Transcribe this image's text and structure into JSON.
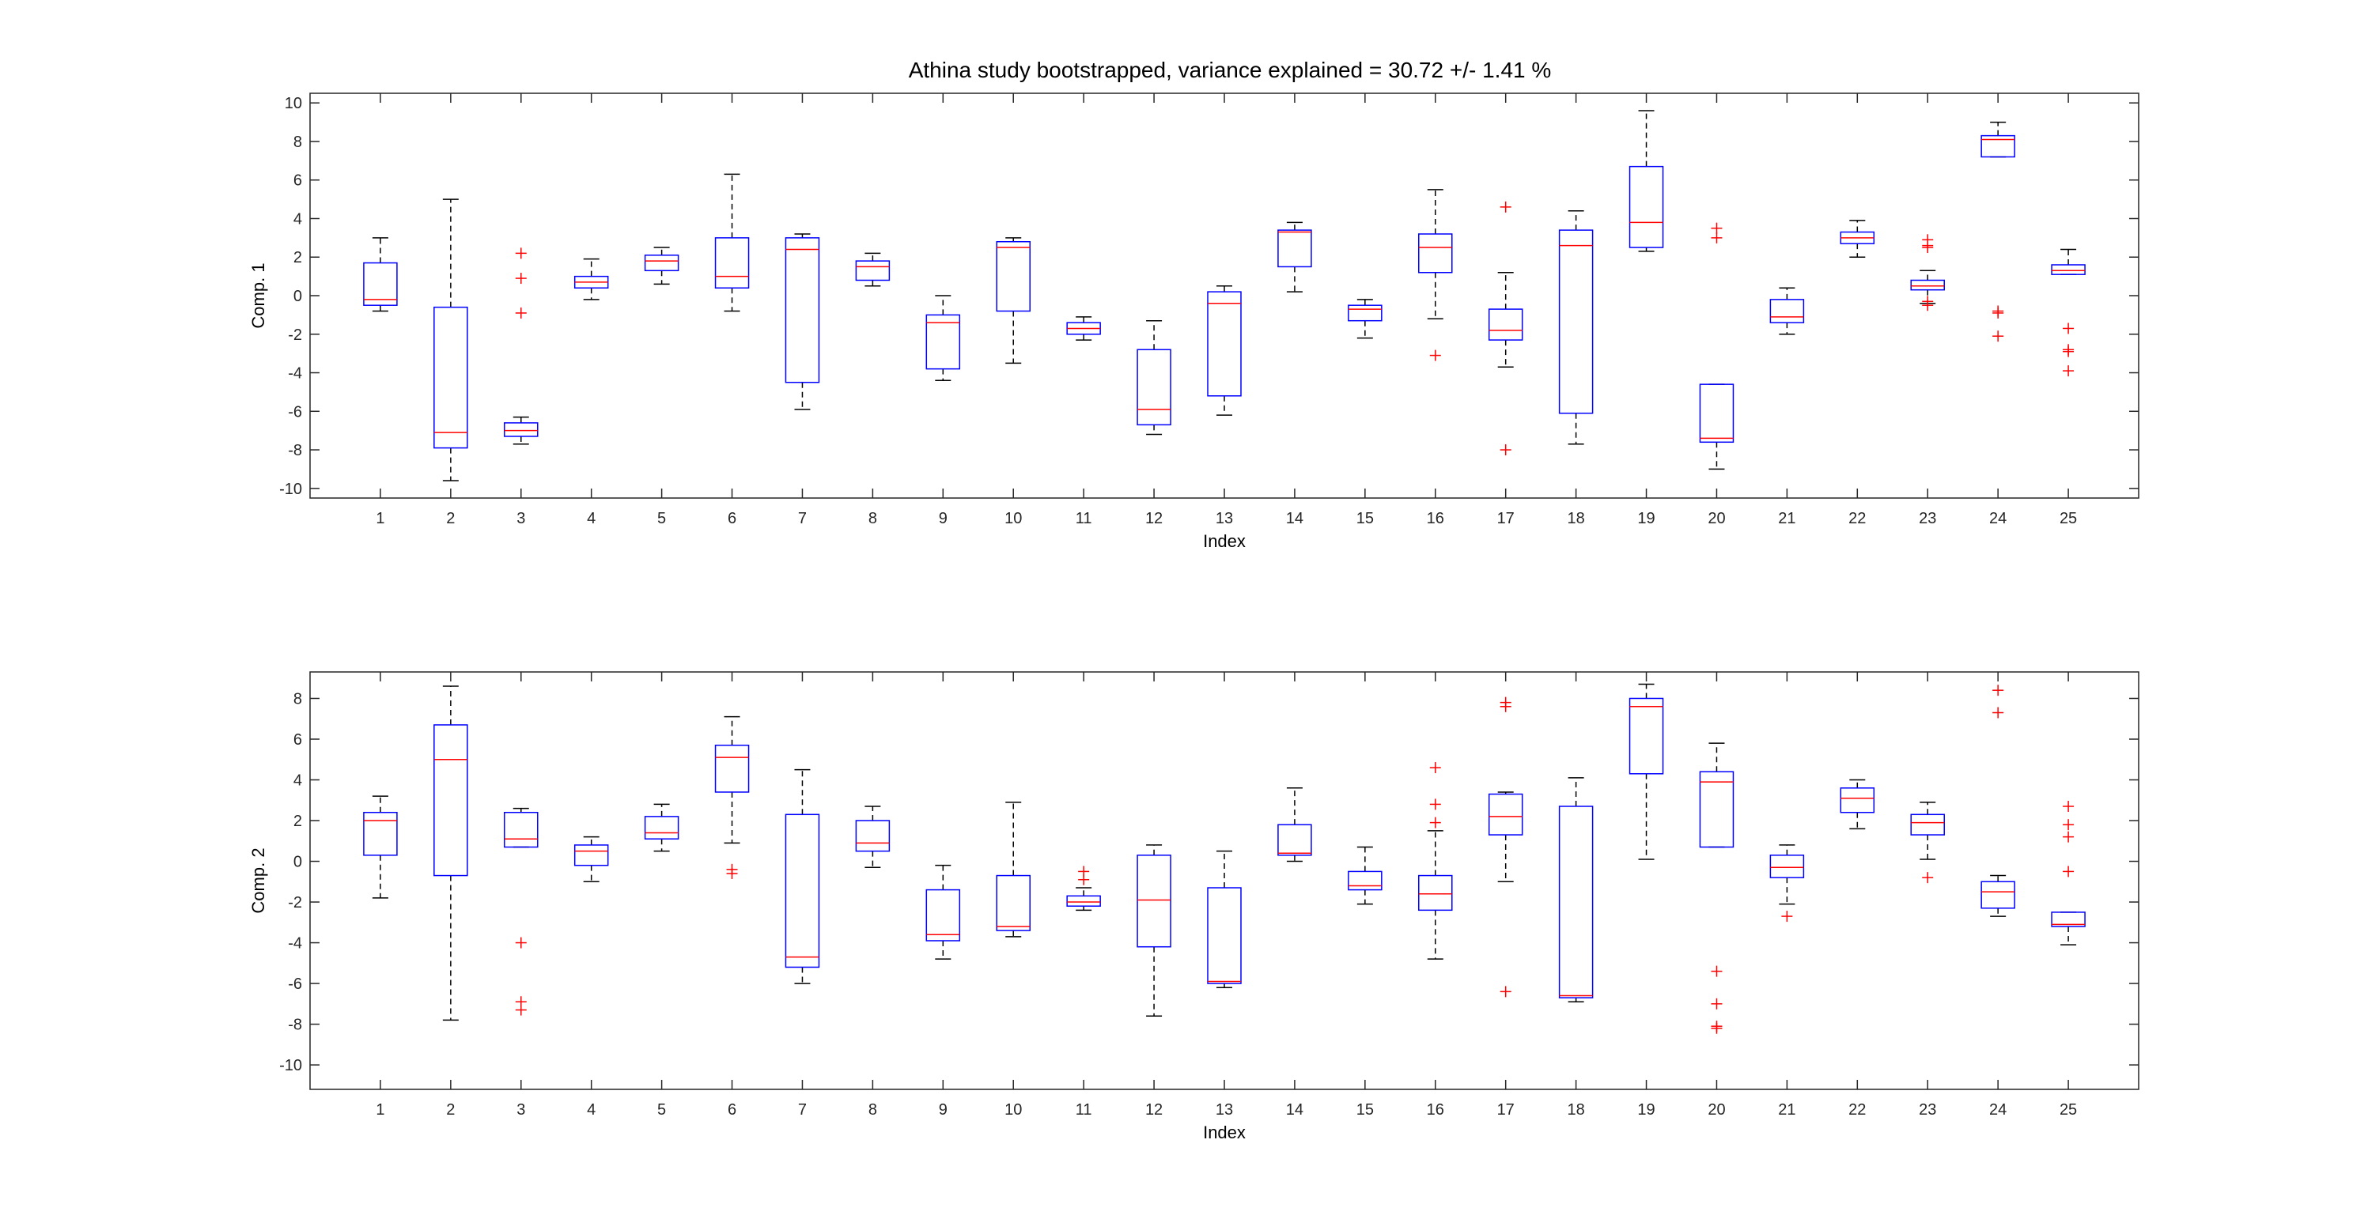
{
  "title": "Athina study bootstrapped, variance explained = 30.72 +/- 1.41 %",
  "colors": {
    "box": "#0000ff",
    "median": "#ff0000",
    "whisker": "#000000",
    "outlier": "#ff0000",
    "axis": "#262626"
  },
  "chart_data": [
    {
      "type": "box",
      "xlabel": "Index",
      "ylabel": "Comp. 1",
      "ylim": [
        -10.5,
        10.5
      ],
      "yticks": [
        -10,
        -8,
        -6,
        -4,
        -2,
        0,
        2,
        4,
        6,
        8,
        10
      ],
      "xlim": [
        0,
        26
      ],
      "categories": [
        "1",
        "2",
        "3",
        "4",
        "5",
        "6",
        "7",
        "8",
        "9",
        "10",
        "11",
        "12",
        "13",
        "14",
        "15",
        "16",
        "17",
        "18",
        "19",
        "20",
        "21",
        "22",
        "23",
        "24",
        "25"
      ],
      "grid": false,
      "boxes": [
        {
          "index": 1,
          "whisker_low": -0.8,
          "q1": -0.5,
          "median": -0.2,
          "q3": 1.7,
          "whisker_high": 3.0,
          "outliers": []
        },
        {
          "index": 2,
          "whisker_low": -9.6,
          "q1": -7.9,
          "median": -7.1,
          "q3": -0.6,
          "whisker_high": 5.0,
          "outliers": []
        },
        {
          "index": 3,
          "whisker_low": -7.7,
          "q1": -7.3,
          "median": -7.0,
          "q3": -6.6,
          "whisker_high": -6.3,
          "outliers": [
            2.2,
            0.9,
            -0.9
          ]
        },
        {
          "index": 4,
          "whisker_low": -0.2,
          "q1": 0.4,
          "median": 0.7,
          "q3": 1.0,
          "whisker_high": 1.9,
          "outliers": []
        },
        {
          "index": 5,
          "whisker_low": 0.6,
          "q1": 1.3,
          "median": 1.8,
          "q3": 2.1,
          "whisker_high": 2.5,
          "outliers": []
        },
        {
          "index": 6,
          "whisker_low": -0.8,
          "q1": 0.4,
          "median": 1.0,
          "q3": 3.0,
          "whisker_high": 6.3,
          "outliers": []
        },
        {
          "index": 7,
          "whisker_low": -5.9,
          "q1": -4.5,
          "median": 2.4,
          "q3": 3.0,
          "whisker_high": 3.2,
          "outliers": []
        },
        {
          "index": 8,
          "whisker_low": 0.5,
          "q1": 0.8,
          "median": 1.5,
          "q3": 1.8,
          "whisker_high": 2.2,
          "outliers": []
        },
        {
          "index": 9,
          "whisker_low": -4.4,
          "q1": -3.8,
          "median": -1.4,
          "q3": -1.0,
          "whisker_high": 0.0,
          "outliers": []
        },
        {
          "index": 10,
          "whisker_low": -3.5,
          "q1": -0.8,
          "median": 2.5,
          "q3": 2.8,
          "whisker_high": 3.0,
          "outliers": []
        },
        {
          "index": 11,
          "whisker_low": -2.3,
          "q1": -2.0,
          "median": -1.7,
          "q3": -1.4,
          "whisker_high": -1.1,
          "outliers": []
        },
        {
          "index": 12,
          "whisker_low": -7.2,
          "q1": -6.7,
          "median": -5.9,
          "q3": -2.8,
          "whisker_high": -1.3,
          "outliers": []
        },
        {
          "index": 13,
          "whisker_low": -6.2,
          "q1": -5.2,
          "median": -0.4,
          "q3": 0.2,
          "whisker_high": 0.5,
          "outliers": []
        },
        {
          "index": 14,
          "whisker_low": 0.2,
          "q1": 1.5,
          "median": 3.3,
          "q3": 3.4,
          "whisker_high": 3.8,
          "outliers": []
        },
        {
          "index": 15,
          "whisker_low": -2.2,
          "q1": -1.3,
          "median": -0.7,
          "q3": -0.5,
          "whisker_high": -0.2,
          "outliers": []
        },
        {
          "index": 16,
          "whisker_low": -1.2,
          "q1": 1.2,
          "median": 2.5,
          "q3": 3.2,
          "whisker_high": 5.5,
          "outliers": [
            -3.1
          ]
        },
        {
          "index": 17,
          "whisker_low": -3.7,
          "q1": -2.3,
          "median": -1.8,
          "q3": -0.7,
          "whisker_high": 1.2,
          "outliers": [
            4.6,
            -8.0
          ]
        },
        {
          "index": 18,
          "whisker_low": -7.7,
          "q1": -6.1,
          "median": 2.6,
          "q3": 3.4,
          "whisker_high": 4.4,
          "outliers": []
        },
        {
          "index": 19,
          "whisker_low": 2.3,
          "q1": 2.5,
          "median": 3.8,
          "q3": 6.7,
          "whisker_high": 9.6,
          "outliers": []
        },
        {
          "index": 20,
          "whisker_low": -9.0,
          "q1": -7.6,
          "median": -7.4,
          "q3": -4.6,
          "whisker_high": -4.6,
          "outliers": [
            3.5,
            3.0
          ]
        },
        {
          "index": 21,
          "whisker_low": -2.0,
          "q1": -1.4,
          "median": -1.1,
          "q3": -0.2,
          "whisker_high": 0.4,
          "outliers": []
        },
        {
          "index": 22,
          "whisker_low": 2.0,
          "q1": 2.7,
          "median": 3.0,
          "q3": 3.3,
          "whisker_high": 3.9,
          "outliers": []
        },
        {
          "index": 23,
          "whisker_low": -0.4,
          "q1": 0.3,
          "median": 0.5,
          "q3": 0.8,
          "whisker_high": 1.3,
          "outliers": [
            2.9,
            2.6,
            2.5,
            -0.3,
            -0.5
          ]
        },
        {
          "index": 24,
          "whisker_low": 7.2,
          "q1": 7.2,
          "median": 8.1,
          "q3": 8.3,
          "whisker_high": 9.0,
          "outliers": [
            -0.8,
            -0.9,
            -2.1
          ]
        },
        {
          "index": 25,
          "whisker_low": 1.1,
          "q1": 1.1,
          "median": 1.3,
          "q3": 1.6,
          "whisker_high": 2.4,
          "outliers": [
            -1.7,
            -2.8,
            -2.9,
            -3.9
          ]
        }
      ]
    },
    {
      "type": "box",
      "xlabel": "Index",
      "ylabel": "Comp. 2",
      "ylim": [
        -11.2,
        9.3
      ],
      "yticks": [
        -10,
        -8,
        -6,
        -4,
        -2,
        0,
        2,
        4,
        6,
        8
      ],
      "xlim": [
        0,
        26
      ],
      "categories": [
        "1",
        "2",
        "3",
        "4",
        "5",
        "6",
        "7",
        "8",
        "9",
        "10",
        "11",
        "12",
        "13",
        "14",
        "15",
        "16",
        "17",
        "18",
        "19",
        "20",
        "21",
        "22",
        "23",
        "24",
        "25"
      ],
      "grid": false,
      "boxes": [
        {
          "index": 1,
          "whisker_low": -1.8,
          "q1": 0.3,
          "median": 2.0,
          "q3": 2.4,
          "whisker_high": 3.2,
          "outliers": []
        },
        {
          "index": 2,
          "whisker_low": -7.8,
          "q1": -0.7,
          "median": 5.0,
          "q3": 6.7,
          "whisker_high": 8.6,
          "outliers": []
        },
        {
          "index": 3,
          "whisker_low": 0.7,
          "q1": 0.7,
          "median": 1.1,
          "q3": 2.4,
          "whisker_high": 2.6,
          "outliers": [
            -4.0,
            -6.9,
            -7.3
          ]
        },
        {
          "index": 4,
          "whisker_low": -1.0,
          "q1": -0.2,
          "median": 0.5,
          "q3": 0.8,
          "whisker_high": 1.2,
          "outliers": []
        },
        {
          "index": 5,
          "whisker_low": 0.5,
          "q1": 1.1,
          "median": 1.4,
          "q3": 2.2,
          "whisker_high": 2.8,
          "outliers": []
        },
        {
          "index": 6,
          "whisker_low": 0.9,
          "q1": 3.4,
          "median": 5.1,
          "q3": 5.7,
          "whisker_high": 7.1,
          "outliers": [
            -0.4,
            -0.6
          ]
        },
        {
          "index": 7,
          "whisker_low": -6.0,
          "q1": -5.2,
          "median": -4.7,
          "q3": 2.3,
          "whisker_high": 4.5,
          "outliers": []
        },
        {
          "index": 8,
          "whisker_low": -0.3,
          "q1": 0.5,
          "median": 0.9,
          "q3": 2.0,
          "whisker_high": 2.7,
          "outliers": []
        },
        {
          "index": 9,
          "whisker_low": -4.8,
          "q1": -3.9,
          "median": -3.6,
          "q3": -1.4,
          "whisker_high": -0.2,
          "outliers": []
        },
        {
          "index": 10,
          "whisker_low": -3.7,
          "q1": -3.4,
          "median": -3.2,
          "q3": -0.7,
          "whisker_high": 2.9,
          "outliers": []
        },
        {
          "index": 11,
          "whisker_low": -2.4,
          "q1": -2.2,
          "median": -2.0,
          "q3": -1.7,
          "whisker_high": -1.3,
          "outliers": [
            -0.5,
            -0.9
          ]
        },
        {
          "index": 12,
          "whisker_low": -7.6,
          "q1": -4.2,
          "median": -1.9,
          "q3": 0.3,
          "whisker_high": 0.8,
          "outliers": []
        },
        {
          "index": 13,
          "whisker_low": -6.2,
          "q1": -6.0,
          "median": -5.9,
          "q3": -1.3,
          "whisker_high": 0.5,
          "outliers": []
        },
        {
          "index": 14,
          "whisker_low": -0.0,
          "q1": 0.3,
          "median": 0.4,
          "q3": 1.8,
          "whisker_high": 3.6,
          "outliers": []
        },
        {
          "index": 15,
          "whisker_low": -2.1,
          "q1": -1.4,
          "median": -1.2,
          "q3": -0.5,
          "whisker_high": 0.7,
          "outliers": []
        },
        {
          "index": 16,
          "whisker_low": -4.8,
          "q1": -2.4,
          "median": -1.6,
          "q3": -0.7,
          "whisker_high": 1.5,
          "outliers": [
            4.6,
            2.8,
            1.9
          ]
        },
        {
          "index": 17,
          "whisker_low": -1.0,
          "q1": 1.3,
          "median": 2.2,
          "q3": 3.3,
          "whisker_high": 3.4,
          "outliers": [
            7.8,
            7.6,
            -6.4
          ]
        },
        {
          "index": 18,
          "whisker_low": -6.9,
          "q1": -6.7,
          "median": -6.6,
          "q3": 2.7,
          "whisker_high": 4.1,
          "outliers": []
        },
        {
          "index": 19,
          "whisker_low": 0.1,
          "q1": 4.3,
          "median": 7.6,
          "q3": 8.0,
          "whisker_high": 8.7,
          "outliers": []
        },
        {
          "index": 20,
          "whisker_low": 0.7,
          "q1": 0.7,
          "median": 3.9,
          "q3": 4.4,
          "whisker_high": 5.8,
          "outliers": [
            -5.4,
            -7.0,
            -8.1,
            -8.2
          ]
        },
        {
          "index": 21,
          "whisker_low": -2.1,
          "q1": -0.8,
          "median": -0.3,
          "q3": 0.3,
          "whisker_high": 0.8,
          "outliers": [
            -2.7
          ]
        },
        {
          "index": 22,
          "whisker_low": 1.6,
          "q1": 2.4,
          "median": 3.1,
          "q3": 3.6,
          "whisker_high": 4.0,
          "outliers": []
        },
        {
          "index": 23,
          "whisker_low": 0.1,
          "q1": 1.3,
          "median": 1.9,
          "q3": 2.3,
          "whisker_high": 2.9,
          "outliers": [
            -0.8
          ]
        },
        {
          "index": 24,
          "whisker_low": -2.7,
          "q1": -2.3,
          "median": -1.5,
          "q3": -1.0,
          "whisker_high": -0.7,
          "outliers": [
            8.4,
            7.3
          ]
        },
        {
          "index": 25,
          "whisker_low": -4.1,
          "q1": -3.2,
          "median": -3.1,
          "q3": -2.5,
          "whisker_high": -2.5,
          "outliers": [
            2.7,
            1.8,
            1.2,
            -0.5
          ]
        }
      ]
    }
  ]
}
